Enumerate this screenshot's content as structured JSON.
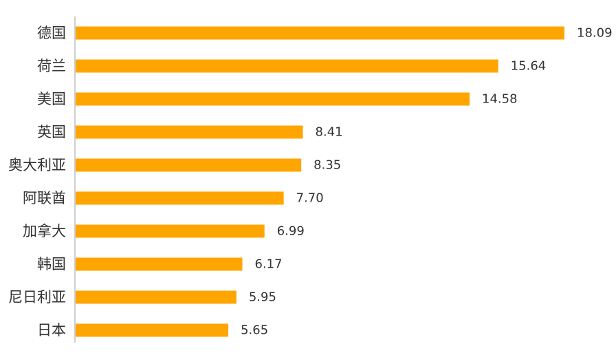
{
  "chart_data": {
    "type": "bar",
    "orientation": "horizontal",
    "categories": [
      "德国",
      "荷兰",
      "美国",
      "英国",
      "奥大利亚",
      "阿联酋",
      "加拿大",
      "韩国",
      "尼日利亚",
      "日本"
    ],
    "values": [
      18.09,
      15.64,
      14.58,
      8.41,
      8.35,
      7.7,
      6.99,
      6.17,
      5.95,
      5.65
    ],
    "value_labels": [
      "18.09",
      "15.64",
      "14.58",
      "8.41",
      "8.35",
      "7.70",
      "6.99",
      "6.17",
      "5.95",
      "5.65"
    ],
    "title": "",
    "xlabel": "",
    "ylabel": "",
    "xlim": [
      0,
      18.09
    ],
    "grid": false,
    "legend": "none",
    "bar_color": "#FFA500",
    "axis_color": "#BFBFBF",
    "text_color": "#333333"
  }
}
